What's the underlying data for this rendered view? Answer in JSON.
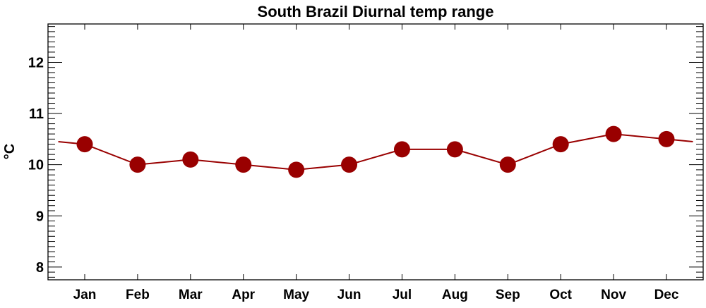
{
  "chart_data": {
    "type": "line",
    "title": "South Brazil Diurnal temp range",
    "xlabel": "",
    "ylabel": "°C",
    "categories": [
      "Jan",
      "Feb",
      "Mar",
      "Apr",
      "May",
      "Jun",
      "Jul",
      "Aug",
      "Sep",
      "Oct",
      "Nov",
      "Dec"
    ],
    "series": [
      {
        "name": "Diurnal temp range",
        "values": [
          10.4,
          10.0,
          10.1,
          10.0,
          9.9,
          10.0,
          10.3,
          10.3,
          10.0,
          10.4,
          10.6,
          10.5
        ],
        "color": "#990000"
      }
    ],
    "wrap_value": 10.45,
    "ylim": [
      7.75,
      12.75
    ],
    "yticks": [
      8,
      9,
      10,
      11,
      12
    ],
    "ytick_labels": [
      "8",
      "9",
      "10",
      "11",
      "12"
    ],
    "yminor_step": 0.1,
    "grid": false,
    "legend": "none"
  }
}
